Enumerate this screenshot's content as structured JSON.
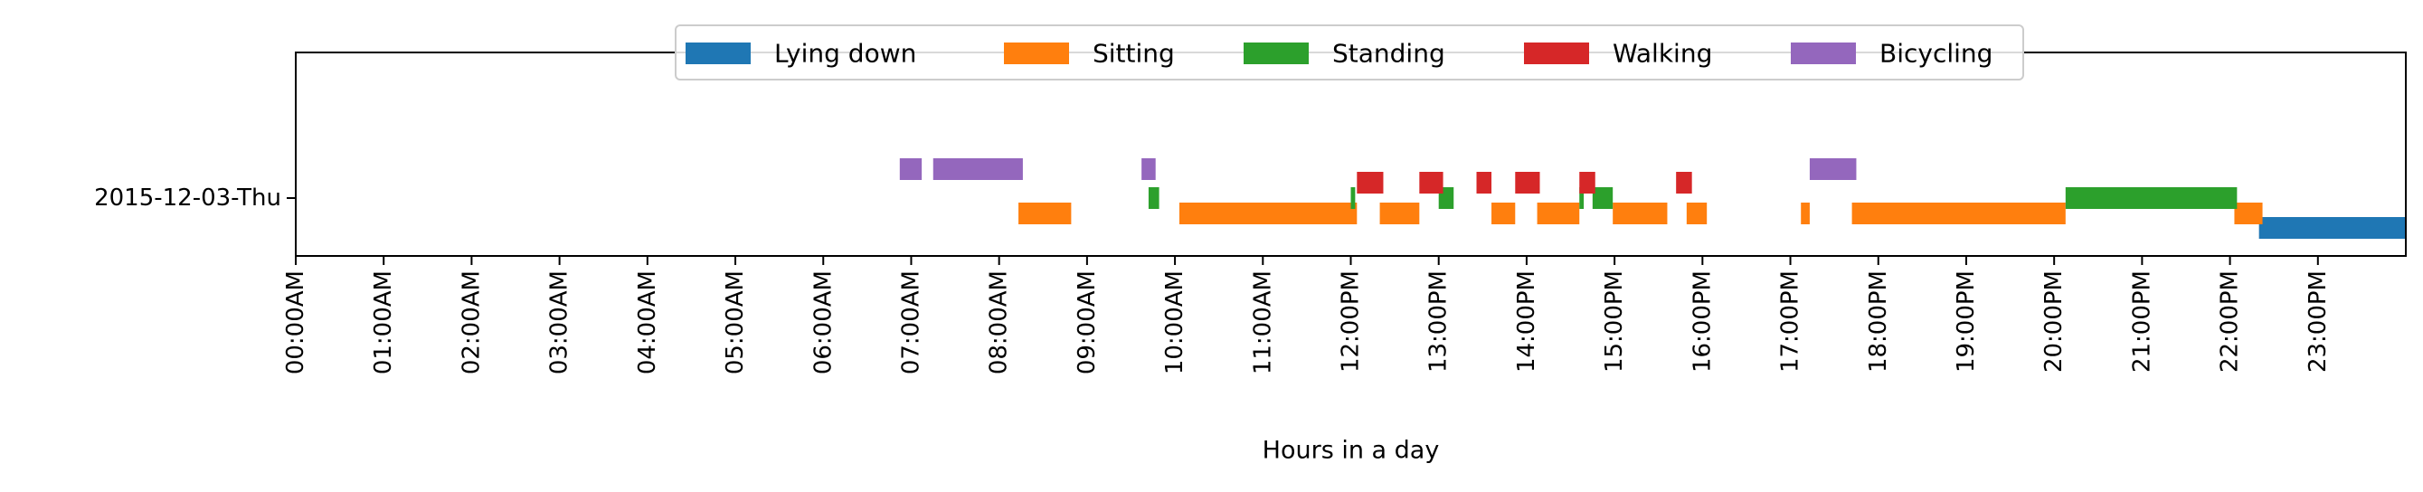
{
  "chart_data": {
    "type": "timeline",
    "title": "",
    "xlabel": "Hours in a day",
    "ylabel": "",
    "xlim": [
      0,
      24
    ],
    "grid": false,
    "legend_position": "top-center",
    "categories": [
      "2015-12-03-Thu"
    ],
    "x_tick_labels": [
      "00:00AM",
      "01:00AM",
      "02:00AM",
      "03:00AM",
      "04:00AM",
      "05:00AM",
      "06:00AM",
      "07:00AM",
      "08:00AM",
      "09:00AM",
      "10:00AM",
      "11:00AM",
      "12:00PM",
      "13:00PM",
      "14:00PM",
      "15:00PM",
      "16:00PM",
      "17:00PM",
      "18:00PM",
      "19:00PM",
      "20:00PM",
      "21:00PM",
      "22:00PM",
      "23:00PM"
    ],
    "series": [
      {
        "name": "Lying down",
        "color": "#1f77b4",
        "intervals": [
          [
            22.33,
            24.0
          ]
        ]
      },
      {
        "name": "Sitting",
        "color": "#ff7f0e",
        "intervals": [
          [
            8.22,
            8.82
          ],
          [
            10.05,
            12.07
          ],
          [
            12.33,
            12.78
          ],
          [
            13.6,
            13.87
          ],
          [
            14.12,
            14.6
          ],
          [
            14.98,
            15.6
          ],
          [
            15.82,
            16.05
          ],
          [
            17.12,
            17.22
          ],
          [
            17.7,
            20.13
          ],
          [
            22.05,
            22.37
          ]
        ]
      },
      {
        "name": "Standing",
        "color": "#2ca02c",
        "intervals": [
          [
            9.7,
            9.82
          ],
          [
            12.0,
            12.05
          ],
          [
            13.0,
            13.17
          ],
          [
            14.6,
            14.65
          ],
          [
            14.75,
            14.98
          ],
          [
            20.13,
            22.08
          ]
        ]
      },
      {
        "name": "Walking",
        "color": "#d62728",
        "intervals": [
          [
            12.07,
            12.37
          ],
          [
            12.78,
            13.05
          ],
          [
            13.43,
            13.6
          ],
          [
            13.87,
            14.15
          ],
          [
            14.6,
            14.78
          ],
          [
            15.7,
            15.88
          ]
        ]
      },
      {
        "name": "Bicycling",
        "color": "#9467bd",
        "intervals": [
          [
            6.87,
            7.12
          ],
          [
            7.25,
            8.27
          ],
          [
            9.62,
            9.78
          ],
          [
            17.22,
            17.75
          ]
        ]
      }
    ]
  }
}
